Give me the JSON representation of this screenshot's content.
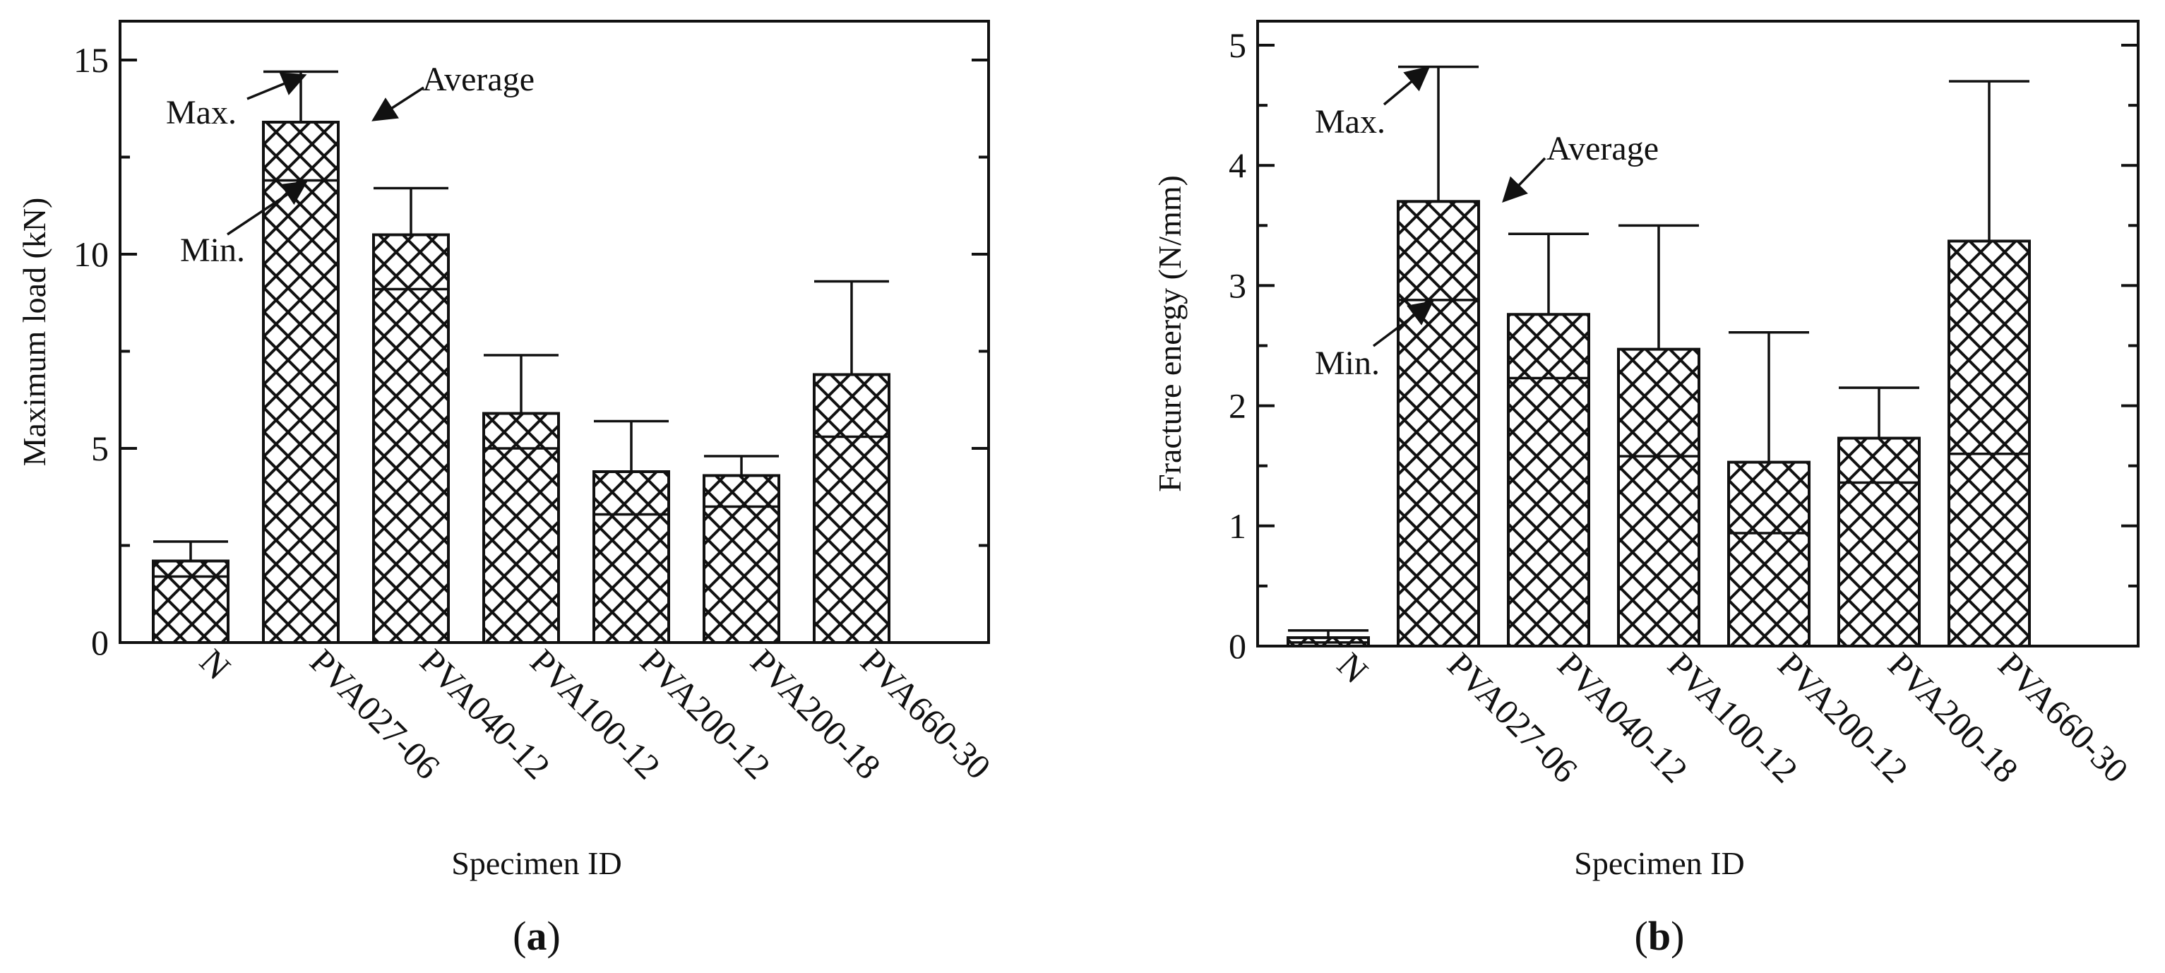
{
  "colors": {
    "ink": "#111111",
    "background": "#ffffff"
  },
  "chart_data": [
    {
      "type": "bar",
      "panel_label": "a",
      "title": "",
      "xlabel": "Specimen ID",
      "ylabel": "Maximum load (kN)",
      "ylim": [
        0,
        16
      ],
      "yticks": [
        0,
        5,
        10,
        15
      ],
      "categories": [
        "N",
        "PVA027-06",
        "PVA040-12",
        "PVA100-12",
        "PVA200-12",
        "PVA200-18",
        "PVA660-30"
      ],
      "series": [
        {
          "name": "Average",
          "values": [
            2.1,
            13.4,
            10.5,
            5.9,
            4.4,
            4.3,
            6.9
          ]
        },
        {
          "name": "Min.",
          "values": [
            1.7,
            11.9,
            9.1,
            5.0,
            3.3,
            3.5,
            5.3
          ]
        },
        {
          "name": "Max.",
          "values": [
            2.6,
            14.7,
            11.7,
            7.4,
            5.7,
            4.8,
            9.3
          ]
        }
      ],
      "annotations": {
        "max_label": "Max.",
        "average_label": "Average",
        "min_label": "Min."
      }
    },
    {
      "type": "bar",
      "panel_label": "b",
      "title": "",
      "xlabel": "Specimen ID",
      "ylabel": "Fracture energy (N/mm)",
      "ylim": [
        0,
        5.2
      ],
      "yticks": [
        0,
        1,
        2,
        3,
        4,
        5
      ],
      "categories": [
        "N",
        "PVA027-06",
        "PVA040-12",
        "PVA100-12",
        "PVA200-12",
        "PVA200-18",
        "PVA660-30"
      ],
      "series": [
        {
          "name": "Average",
          "values": [
            0.07,
            3.7,
            2.76,
            2.47,
            1.53,
            1.73,
            3.37
          ]
        },
        {
          "name": "Min.",
          "values": [
            0.03,
            2.88,
            2.23,
            1.58,
            0.94,
            1.36,
            1.6
          ]
        },
        {
          "name": "Max.",
          "values": [
            0.13,
            4.82,
            3.43,
            3.5,
            2.61,
            2.15,
            4.7
          ]
        }
      ],
      "annotations": {
        "max_label": "Max.",
        "average_label": "Average",
        "min_label": "Min."
      }
    }
  ]
}
